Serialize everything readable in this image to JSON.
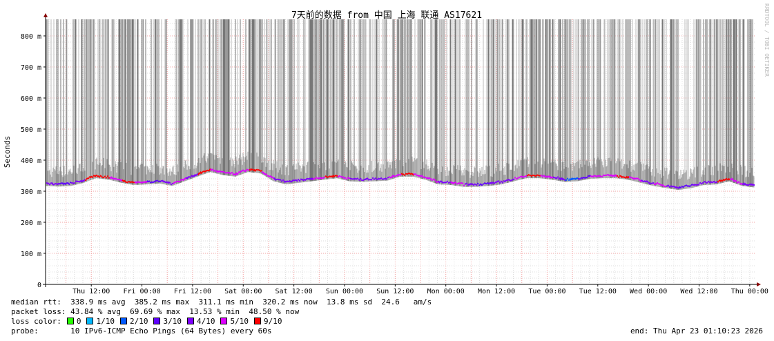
{
  "chart_data": {
    "type": "line",
    "title": "7天前的数据 from  中国 上海 联通 AS17621",
    "ylabel": "Seconds",
    "watermark": "RRDTOOL / TOBI OETIKER",
    "ylim": [
      0,
      0.853
    ],
    "y_ticks": [
      {
        "v": 0,
        "label": "0"
      },
      {
        "v": 100,
        "label": "100 m"
      },
      {
        "v": 200,
        "label": "200 m"
      },
      {
        "v": 300,
        "label": "300 m"
      },
      {
        "v": 400,
        "label": "400 m"
      },
      {
        "v": 500,
        "label": "500 m"
      },
      {
        "v": 600,
        "label": "600 m"
      },
      {
        "v": 700,
        "label": "700 m"
      },
      {
        "v": 800,
        "label": "800 m"
      }
    ],
    "x_range_hours": [
      0,
      168
    ],
    "x_ticks": [
      {
        "h": 10.83,
        "label": "Thu 12:00"
      },
      {
        "h": 22.83,
        "label": "Fri 00:00"
      },
      {
        "h": 34.83,
        "label": "Fri 12:00"
      },
      {
        "h": 46.83,
        "label": "Sat 00:00"
      },
      {
        "h": 58.83,
        "label": "Sat 12:00"
      },
      {
        "h": 70.83,
        "label": "Sun 00:00"
      },
      {
        "h": 82.83,
        "label": "Sun 12:00"
      },
      {
        "h": 94.83,
        "label": "Mon 00:00"
      },
      {
        "h": 106.83,
        "label": "Mon 12:00"
      },
      {
        "h": 118.83,
        "label": "Tue 00:00"
      },
      {
        "h": 130.83,
        "label": "Tue 12:00"
      },
      {
        "h": 142.83,
        "label": "Wed 00:00"
      },
      {
        "h": 154.83,
        "label": "Wed 12:00"
      },
      {
        "h": 166.83,
        "label": "Thu 00:00"
      }
    ],
    "grid": true,
    "series": [
      {
        "name": "median rtt",
        "x_hours": [
          0,
          3,
          6,
          9,
          12,
          15,
          18,
          21,
          24,
          27,
          30,
          33,
          36,
          39,
          42,
          45,
          48,
          51,
          54,
          57,
          60,
          63,
          66,
          69,
          72,
          75,
          78,
          81,
          84,
          87,
          90,
          93,
          96,
          99,
          102,
          105,
          108,
          111,
          114,
          117,
          120,
          123,
          126,
          129,
          132,
          135,
          138,
          141,
          144,
          147,
          150,
          153,
          156,
          159,
          162,
          165,
          168
        ],
        "median_ms": [
          325,
          323,
          325,
          335,
          350,
          345,
          335,
          328,
          330,
          333,
          325,
          340,
          355,
          370,
          360,
          355,
          370,
          365,
          340,
          330,
          335,
          340,
          345,
          350,
          340,
          338,
          340,
          342,
          355,
          355,
          345,
          330,
          328,
          322,
          322,
          325,
          330,
          340,
          350,
          350,
          345,
          338,
          340,
          348,
          350,
          350,
          345,
          335,
          325,
          318,
          312,
          318,
          328,
          330,
          340,
          325,
          320
        ],
        "loss_tenths": [
          4,
          3,
          4,
          9,
          9,
          5,
          9,
          5,
          3,
          4,
          5,
          4,
          9,
          5,
          5,
          5,
          9,
          5,
          4,
          4,
          4,
          5,
          9,
          5,
          4,
          4,
          4,
          5,
          9,
          5,
          5,
          4,
          5,
          4,
          3,
          4,
          4,
          5,
          9,
          5,
          4,
          2,
          3,
          5,
          5,
          9,
          5,
          4,
          5,
          4,
          3,
          4,
          4,
          9,
          5,
          4,
          4
        ]
      }
    ],
    "legend": {
      "median_rtt": "median rtt:  338.9 ms avg  385.2 ms max  311.1 ms min  320.2 ms now  13.8 ms sd  24.6   am/s",
      "packet_loss": "packet loss: 43.84 % avg  69.69 % max  13.53 % min  48.50 % now",
      "loss_color_label": "loss color:",
      "loss_colors": [
        {
          "label": "0",
          "color": "#26ff00"
        },
        {
          "label": "1/10",
          "color": "#00b8ff"
        },
        {
          "label": "2/10",
          "color": "#0059ff"
        },
        {
          "label": "3/10",
          "color": "#5e00ff"
        },
        {
          "label": "4/10",
          "color": "#7e00ff"
        },
        {
          "label": "5/10",
          "color": "#dd00ff"
        },
        {
          "label": "9/10",
          "color": "#ff0000"
        }
      ],
      "probe": "probe:       10 IPv6-ICMP Echo Pings (64 Bytes) every 60s",
      "end": "end: Thu Apr 23 01:10:23 2026"
    }
  }
}
